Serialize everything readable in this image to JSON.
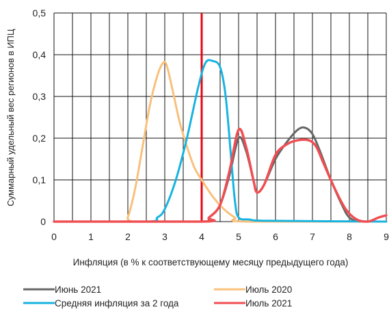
{
  "chart_data": {
    "type": "line",
    "xlabel": "Инфляция (в % к соответствующему месяцу предыдущего года)",
    "ylabel": "Суммарный удельный вес регионов в ИПЦ",
    "xlim": [
      0,
      9
    ],
    "ylim": [
      0,
      0.5
    ],
    "x_ticks": [
      0,
      1,
      2,
      3,
      4,
      5,
      6,
      7,
      8,
      9
    ],
    "x_tick_labels": [
      "0",
      "1",
      "2",
      "3",
      "4",
      "5",
      "6",
      "7",
      "8",
      "9"
    ],
    "y_ticks": [
      0,
      0.1,
      0.2,
      0.3,
      0.4,
      0.5
    ],
    "y_tick_labels": [
      "0",
      "0,1",
      "0,2",
      "0,3",
      "0,4",
      "0,5"
    ],
    "grid": true,
    "minor_x_gridlines": [
      0.5,
      1.5,
      2.5,
      3.5,
      4.5,
      5.5,
      6.5,
      7.5,
      8.5
    ],
    "reference_line": {
      "x": 4,
      "color": "#e30613"
    },
    "legend_position": "bottom",
    "series": [
      {
        "name": "Июнь 2021",
        "color": "#666666",
        "points": [
          [
            0,
            0
          ],
          [
            1.8,
            0
          ],
          [
            4.0,
            0
          ],
          [
            4.2,
            0.01
          ],
          [
            4.5,
            0.04
          ],
          [
            4.75,
            0.11
          ],
          [
            5.0,
            0.2
          ],
          [
            5.2,
            0.17
          ],
          [
            5.4,
            0.1
          ],
          [
            5.5,
            0.07
          ],
          [
            5.7,
            0.09
          ],
          [
            6.0,
            0.15
          ],
          [
            6.3,
            0.19
          ],
          [
            6.6,
            0.22
          ],
          [
            6.8,
            0.225
          ],
          [
            7.0,
            0.21
          ],
          [
            7.2,
            0.17
          ],
          [
            7.5,
            0.1
          ],
          [
            7.8,
            0.04
          ],
          [
            8.0,
            0.01
          ],
          [
            8.3,
            0
          ],
          [
            9,
            0
          ]
        ]
      },
      {
        "name": "Июль 2020",
        "color": "#f9c07b",
        "points": [
          [
            0,
            0
          ],
          [
            1.9,
            0
          ],
          [
            2.0,
            0.01
          ],
          [
            2.2,
            0.08
          ],
          [
            2.4,
            0.18
          ],
          [
            2.6,
            0.28
          ],
          [
            2.8,
            0.35
          ],
          [
            2.95,
            0.38
          ],
          [
            3.05,
            0.375
          ],
          [
            3.2,
            0.32
          ],
          [
            3.4,
            0.24
          ],
          [
            3.6,
            0.18
          ],
          [
            3.8,
            0.13
          ],
          [
            4.0,
            0.1
          ],
          [
            4.3,
            0.06
          ],
          [
            4.6,
            0.03
          ],
          [
            4.9,
            0.01
          ],
          [
            5.2,
            0
          ],
          [
            9,
            0
          ]
        ]
      },
      {
        "name": "Средняя инфляция за 2 года",
        "color": "#17b3e0",
        "points": [
          [
            0,
            0
          ],
          [
            2.5,
            0
          ],
          [
            2.8,
            0.01
          ],
          [
            3.0,
            0.03
          ],
          [
            3.3,
            0.1
          ],
          [
            3.6,
            0.2
          ],
          [
            3.9,
            0.32
          ],
          [
            4.1,
            0.38
          ],
          [
            4.3,
            0.385
          ],
          [
            4.5,
            0.37
          ],
          [
            4.65,
            0.3
          ],
          [
            4.8,
            0.15
          ],
          [
            4.9,
            0.05
          ],
          [
            5.0,
            0.01
          ],
          [
            5.3,
            0.005
          ],
          [
            5.8,
            0.002
          ],
          [
            9,
            0
          ]
        ]
      },
      {
        "name": "Июль 2021",
        "color": "#f04e52",
        "points": [
          [
            0,
            0
          ],
          [
            4.0,
            0
          ],
          [
            4.2,
            0.01
          ],
          [
            4.5,
            0.04
          ],
          [
            4.75,
            0.12
          ],
          [
            5.0,
            0.22
          ],
          [
            5.2,
            0.18
          ],
          [
            5.4,
            0.1
          ],
          [
            5.5,
            0.07
          ],
          [
            5.7,
            0.09
          ],
          [
            6.0,
            0.16
          ],
          [
            6.3,
            0.185
          ],
          [
            6.6,
            0.195
          ],
          [
            6.9,
            0.195
          ],
          [
            7.1,
            0.18
          ],
          [
            7.3,
            0.14
          ],
          [
            7.6,
            0.08
          ],
          [
            7.9,
            0.03
          ],
          [
            8.2,
            0.005
          ],
          [
            8.5,
            0
          ],
          [
            8.8,
            0.01
          ],
          [
            9.0,
            0.015
          ]
        ]
      }
    ]
  }
}
